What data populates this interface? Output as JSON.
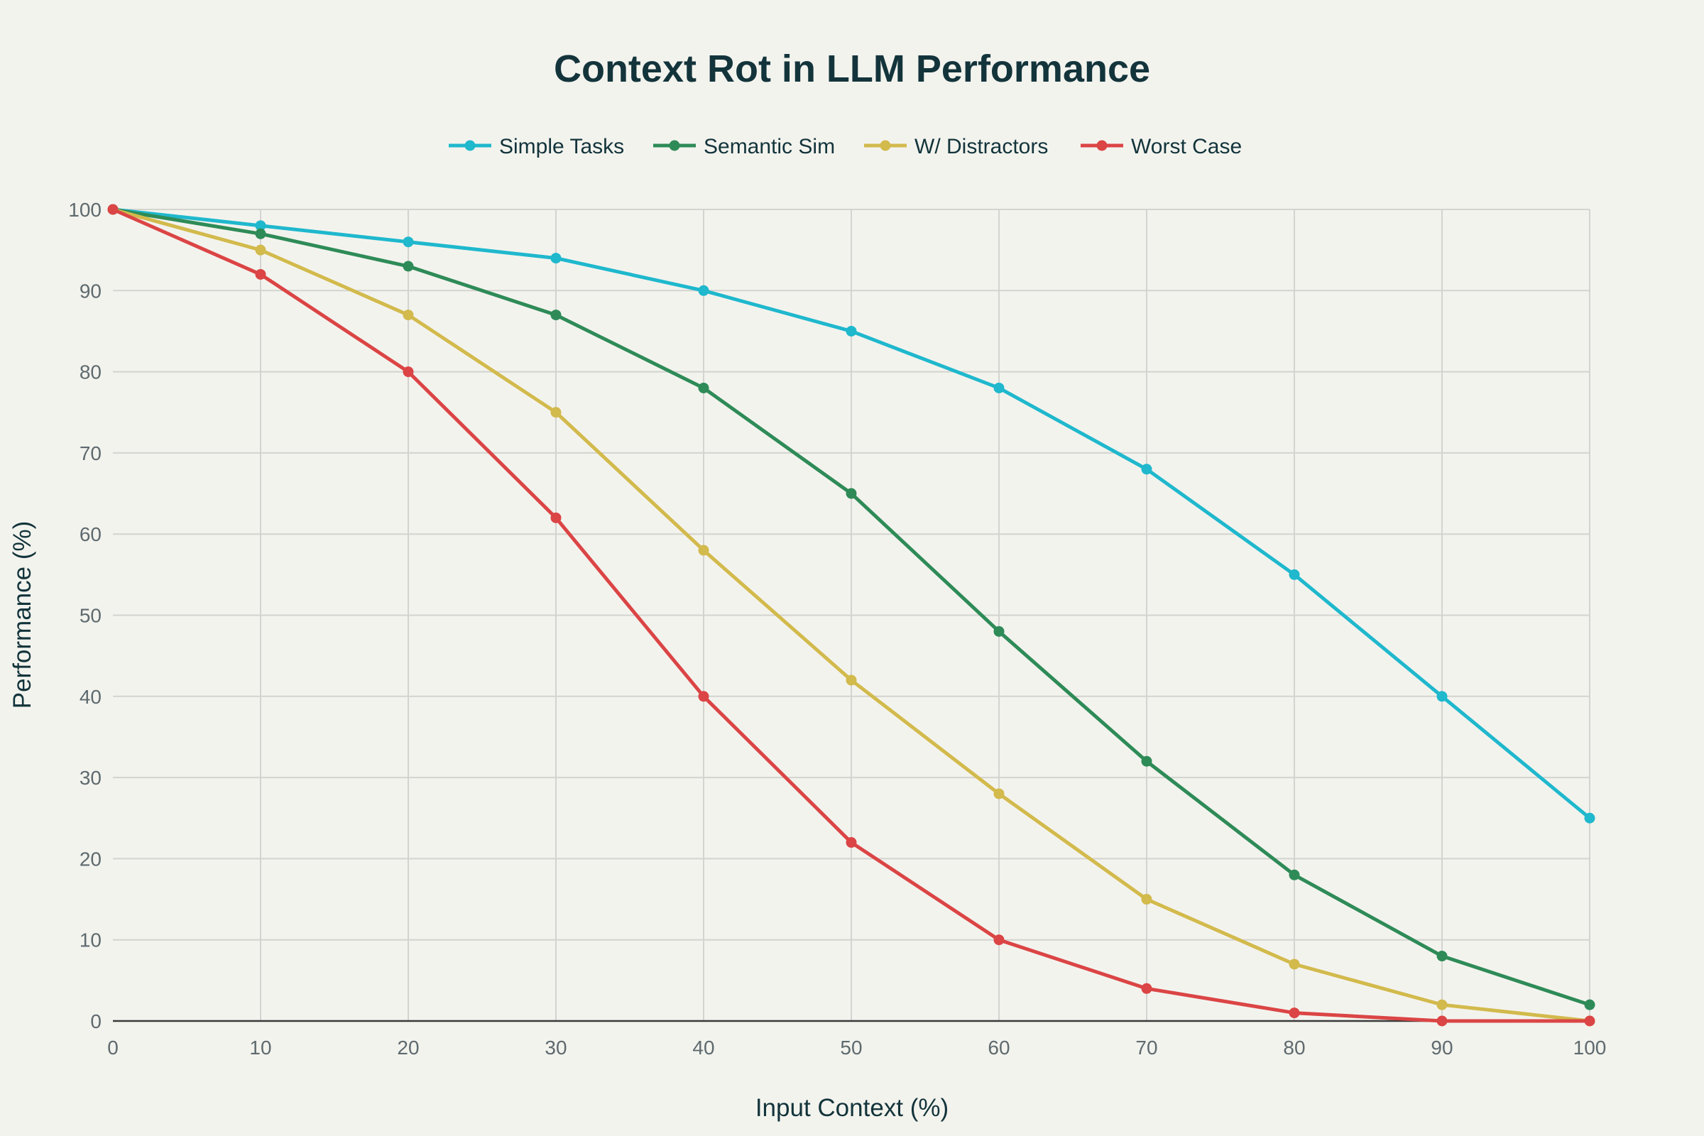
{
  "chart_data": {
    "type": "line",
    "title": "Context Rot in LLM Performance",
    "xlabel": "Input Context (%)",
    "ylabel": "Performance (%)",
    "xlim": [
      0,
      100
    ],
    "ylim": [
      0,
      100
    ],
    "grid": true,
    "legend_placement": "top-center",
    "x": [
      0,
      10,
      20,
      30,
      40,
      50,
      60,
      70,
      80,
      90,
      100
    ],
    "x_ticks": [
      "0",
      "10",
      "20",
      "30",
      "40",
      "50",
      "60",
      "70",
      "80",
      "90",
      "100"
    ],
    "y_ticks": [
      "0",
      "10",
      "20",
      "30",
      "40",
      "50",
      "60",
      "70",
      "80",
      "90",
      "100"
    ],
    "series": [
      {
        "name": "Simple Tasks",
        "color": "#1FB8CD",
        "values": [
          100,
          98,
          96,
          94,
          90,
          85,
          78,
          68,
          55,
          40,
          25
        ]
      },
      {
        "name": "Semantic Sim",
        "color": "#2E8B57",
        "values": [
          100,
          97,
          93,
          87,
          78,
          65,
          48,
          32,
          18,
          8,
          2
        ]
      },
      {
        "name": "W/ Distractors",
        "color": "#D2BA4C",
        "values": [
          100,
          95,
          87,
          75,
          58,
          42,
          28,
          15,
          7,
          2,
          0
        ]
      },
      {
        "name": "Worst Case",
        "color": "#DB4545",
        "values": [
          100,
          92,
          80,
          62,
          40,
          22,
          10,
          4,
          1,
          0,
          0
        ]
      }
    ]
  }
}
